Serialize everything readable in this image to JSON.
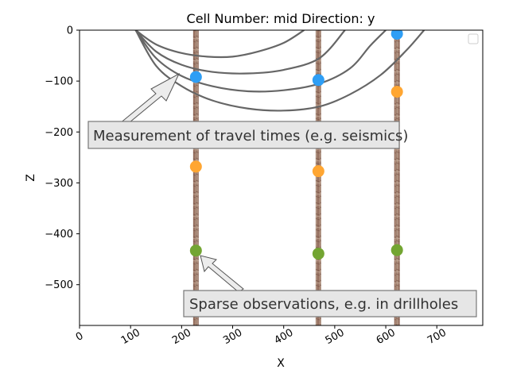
{
  "chart_data": {
    "type": "scatter",
    "title": "Cell Number: mid Direction: y",
    "xlabel": "X",
    "ylabel": "Z",
    "xlim": [
      0,
      790
    ],
    "ylim": [
      -580,
      0
    ],
    "x_ticks": [
      0,
      100,
      200,
      300,
      400,
      500,
      600,
      700
    ],
    "y_ticks": [
      0,
      -100,
      -200,
      -300,
      -400,
      -500
    ],
    "drillholes": [
      {
        "x": 228,
        "z_top": 0,
        "z_bottom": -580
      },
      {
        "x": 468,
        "z_top": 0,
        "z_bottom": -580
      },
      {
        "x": 622,
        "z_top": 0,
        "z_bottom": -580
      }
    ],
    "series": [
      {
        "color": "#2e9ef5",
        "points": [
          [
            228,
            -92
          ],
          [
            468,
            -98
          ],
          [
            622,
            -7
          ]
        ]
      },
      {
        "color": "#ffa632",
        "points": [
          [
            228,
            -268
          ],
          [
            468,
            -277
          ],
          [
            622,
            -121
          ]
        ]
      },
      {
        "color": "#73a532",
        "points": [
          [
            228,
            -433
          ],
          [
            468,
            -439
          ],
          [
            622,
            -432
          ]
        ]
      }
    ],
    "raypaths": [
      [
        [
          110,
          0
        ],
        [
          150,
          -28
        ],
        [
          200,
          -45
        ],
        [
          250,
          -52
        ],
        [
          300,
          -52
        ],
        [
          350,
          -42
        ],
        [
          400,
          -25
        ],
        [
          440,
          0
        ]
      ],
      [
        [
          110,
          0
        ],
        [
          150,
          -42
        ],
        [
          200,
          -68
        ],
        [
          260,
          -82
        ],
        [
          330,
          -85
        ],
        [
          400,
          -78
        ],
        [
          470,
          -55
        ],
        [
          520,
          0
        ]
      ],
      [
        [
          110,
          0
        ],
        [
          150,
          -55
        ],
        [
          200,
          -90
        ],
        [
          260,
          -110
        ],
        [
          330,
          -120
        ],
        [
          400,
          -118
        ],
        [
          470,
          -105
        ],
        [
          530,
          -75
        ],
        [
          570,
          -30
        ],
        [
          600,
          0
        ]
      ],
      [
        [
          110,
          0
        ],
        [
          150,
          -70
        ],
        [
          200,
          -110
        ],
        [
          260,
          -138
        ],
        [
          330,
          -154
        ],
        [
          400,
          -158
        ],
        [
          470,
          -150
        ],
        [
          530,
          -126
        ],
        [
          590,
          -88
        ],
        [
          640,
          -40
        ],
        [
          675,
          0
        ]
      ]
    ],
    "annotations": [
      {
        "text": "Measurement of travel times (e.g. seismics)"
      },
      {
        "text": "Sparse observations, e.g. in drillholes"
      }
    ],
    "legend": "top-right",
    "legend_entries": [],
    "grid": false
  },
  "colors": {
    "raypath": "#666666",
    "annotation_box_fill": "#e6e6e6",
    "annotation_box_stroke": "#777777"
  }
}
